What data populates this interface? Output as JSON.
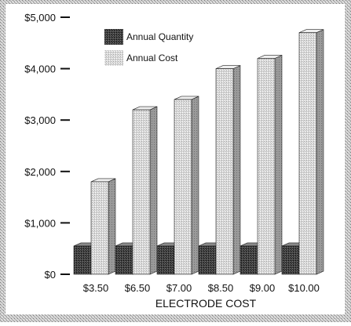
{
  "chart_data": {
    "type": "bar",
    "title": "",
    "xlabel": "ELECTRODE COST",
    "ylabel": "",
    "categories": [
      "$3.50",
      "$6.50",
      "$7.00",
      "$8.50",
      "$9.00",
      "$10.00"
    ],
    "series": [
      {
        "name": "Annual Quantity",
        "values": [
          550,
          550,
          550,
          550,
          550,
          550
        ],
        "color": "#3a3a3a"
      },
      {
        "name": "Annual Cost",
        "values": [
          1800,
          3200,
          3400,
          4000,
          4200,
          4700
        ],
        "color": "#d2d2d2"
      }
    ],
    "ylim": [
      0,
      5000
    ],
    "yticks": [
      0,
      1000,
      2000,
      3000,
      4000,
      5000
    ],
    "ytick_labels": [
      "$0",
      "$1,000",
      "$2,000",
      "$3,000",
      "$4,000",
      "$5,000"
    ],
    "grid": false,
    "legend_position": "top-left",
    "style": "3d-bars"
  }
}
